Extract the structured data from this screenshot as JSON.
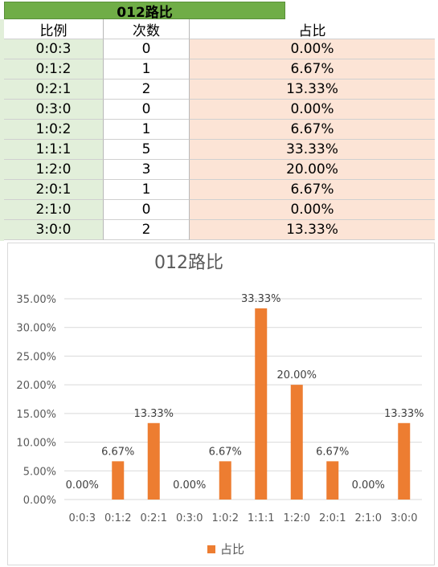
{
  "sheet": {
    "title": "012路比",
    "headers": [
      "比例",
      "次数",
      "占比"
    ],
    "rows": [
      {
        "ratio": "0:0:3",
        "count": "0",
        "pct": "0.00%"
      },
      {
        "ratio": "0:1:2",
        "count": "1",
        "pct": "6.67%"
      },
      {
        "ratio": "0:2:1",
        "count": "2",
        "pct": "13.33%"
      },
      {
        "ratio": "0:3:0",
        "count": "0",
        "pct": "0.00%"
      },
      {
        "ratio": "1:0:2",
        "count": "1",
        "pct": "6.67%"
      },
      {
        "ratio": "1:1:1",
        "count": "5",
        "pct": "33.33%"
      },
      {
        "ratio": "1:2:0",
        "count": "3",
        "pct": "20.00%"
      },
      {
        "ratio": "2:0:1",
        "count": "1",
        "pct": "6.67%"
      },
      {
        "ratio": "2:1:0",
        "count": "0",
        "pct": "0.00%"
      },
      {
        "ratio": "3:0:0",
        "count": "2",
        "pct": "13.33%"
      }
    ],
    "colors": {
      "title_bg": "#70ad47",
      "ratio_bg": "#e2efda",
      "pct_bg": "#fce4d6"
    }
  },
  "chart_data": {
    "type": "bar",
    "title": "012路比",
    "categories": [
      "0:0:3",
      "0:1:2",
      "0:2:1",
      "0:3:0",
      "1:0:2",
      "1:1:1",
      "1:2:0",
      "2:0:1",
      "2:1:0",
      "3:0:0"
    ],
    "series": [
      {
        "name": "占比",
        "values": [
          0.0,
          6.67,
          13.33,
          0.0,
          6.67,
          33.33,
          20.0,
          6.67,
          0.0,
          13.33
        ],
        "color": "#ed7d31"
      }
    ],
    "data_labels": [
      "0.00%",
      "6.67%",
      "13.33%",
      "0.00%",
      "6.67%",
      "33.33%",
      "20.00%",
      "6.67%",
      "0.00%",
      "13.33%"
    ],
    "yticks": [
      "0.00%",
      "5.00%",
      "10.00%",
      "15.00%",
      "20.00%",
      "25.00%",
      "30.00%",
      "35.00%"
    ],
    "ylim": [
      0,
      35
    ],
    "grid": true,
    "legend": "bottom"
  }
}
